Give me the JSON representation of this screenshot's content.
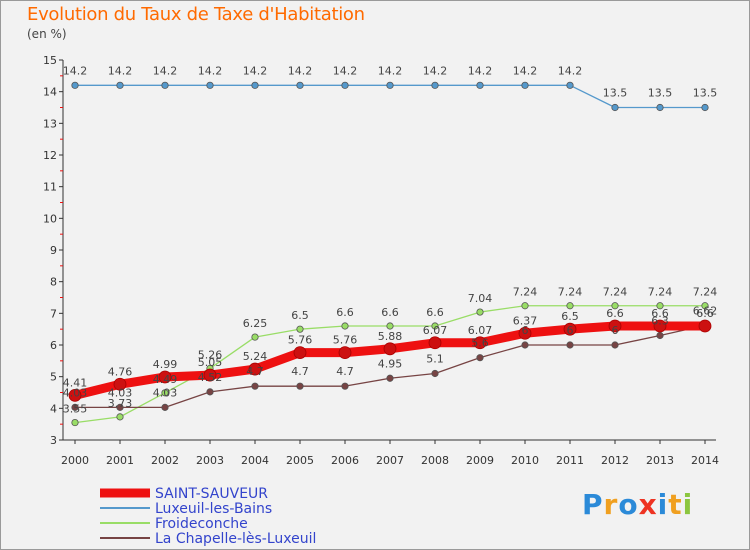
{
  "title": "Evolution du Taux de Taxe d'Habitation",
  "unit": "(en %)",
  "logo": {
    "letters": [
      "P",
      "r",
      "o",
      "x",
      "i",
      "t",
      "i"
    ],
    "colors": [
      "#2b8ad8",
      "#f0a020",
      "#2b8ad8",
      "#ee3322",
      "#2b8ad8",
      "#f0a020",
      "#8cc63f"
    ]
  },
  "chart_data": {
    "type": "line",
    "x": [
      2000,
      2001,
      2002,
      2003,
      2004,
      2005,
      2006,
      2007,
      2008,
      2009,
      2010,
      2011,
      2012,
      2013,
      2014
    ],
    "ylim": [
      3,
      15
    ],
    "yticks": [
      3,
      4,
      5,
      6,
      7,
      8,
      9,
      10,
      11,
      12,
      13,
      14,
      15
    ],
    "grid": false,
    "legend_position": "bottom-left",
    "series": [
      {
        "name": "SAINT-SAUVEUR",
        "color": "#ee1111",
        "values": [
          4.41,
          4.76,
          4.99,
          5.05,
          5.24,
          5.76,
          5.76,
          5.88,
          6.07,
          6.07,
          6.37,
          6.5,
          6.6,
          6.6,
          6.6
        ],
        "labels": [
          "4.41",
          "4.76",
          "4.99",
          "5.05",
          "5.24",
          "5.76",
          "5.76",
          "5.88",
          "6.07",
          "6.07",
          "6.37",
          "6.5",
          "6.6",
          "6.6",
          "6.6"
        ]
      },
      {
        "name": "Luxeuil-les-Bains",
        "color": "#5599cc",
        "values": [
          14.2,
          14.2,
          14.2,
          14.2,
          14.2,
          14.2,
          14.2,
          14.2,
          14.2,
          14.2,
          14.2,
          14.2,
          13.5,
          13.5,
          13.5
        ],
        "labels": [
          "14.2",
          "14.2",
          "14.2",
          "14.2",
          "14.2",
          "14.2",
          "14.2",
          "14.2",
          "14.2",
          "14.2",
          "14.2",
          "14.2",
          "13.5",
          "13.5",
          "13.5"
        ]
      },
      {
        "name": "Froideconche",
        "color": "#99dd66",
        "values": [
          3.55,
          3.73,
          4.49,
          5.26,
          6.25,
          6.5,
          6.6,
          6.6,
          6.6,
          7.04,
          7.24,
          7.24,
          7.24,
          7.24,
          7.24
        ],
        "labels": [
          "3.55",
          "3.73",
          "4.49",
          "5.26",
          "6.25",
          "6.5",
          "6.6",
          "6.6",
          "6.6",
          "7.04",
          "7.24",
          "7.24",
          "7.24",
          "7.24",
          "7.24"
        ]
      },
      {
        "name": "La Chapelle-lès-Luxeuil",
        "color": "#774444",
        "values": [
          4.03,
          4.03,
          4.03,
          4.52,
          4.7,
          4.7,
          4.7,
          4.95,
          5.1,
          5.6,
          6.0,
          6.0,
          6.0,
          6.3,
          6.62
        ],
        "labels": [
          "4.03",
          "4.03",
          "4.03",
          "4.52",
          "4.7",
          "4.7",
          "4.7",
          "4.95",
          "5.1",
          "5.6",
          "6",
          "6",
          "6",
          "6.3",
          "6.62"
        ]
      }
    ]
  }
}
